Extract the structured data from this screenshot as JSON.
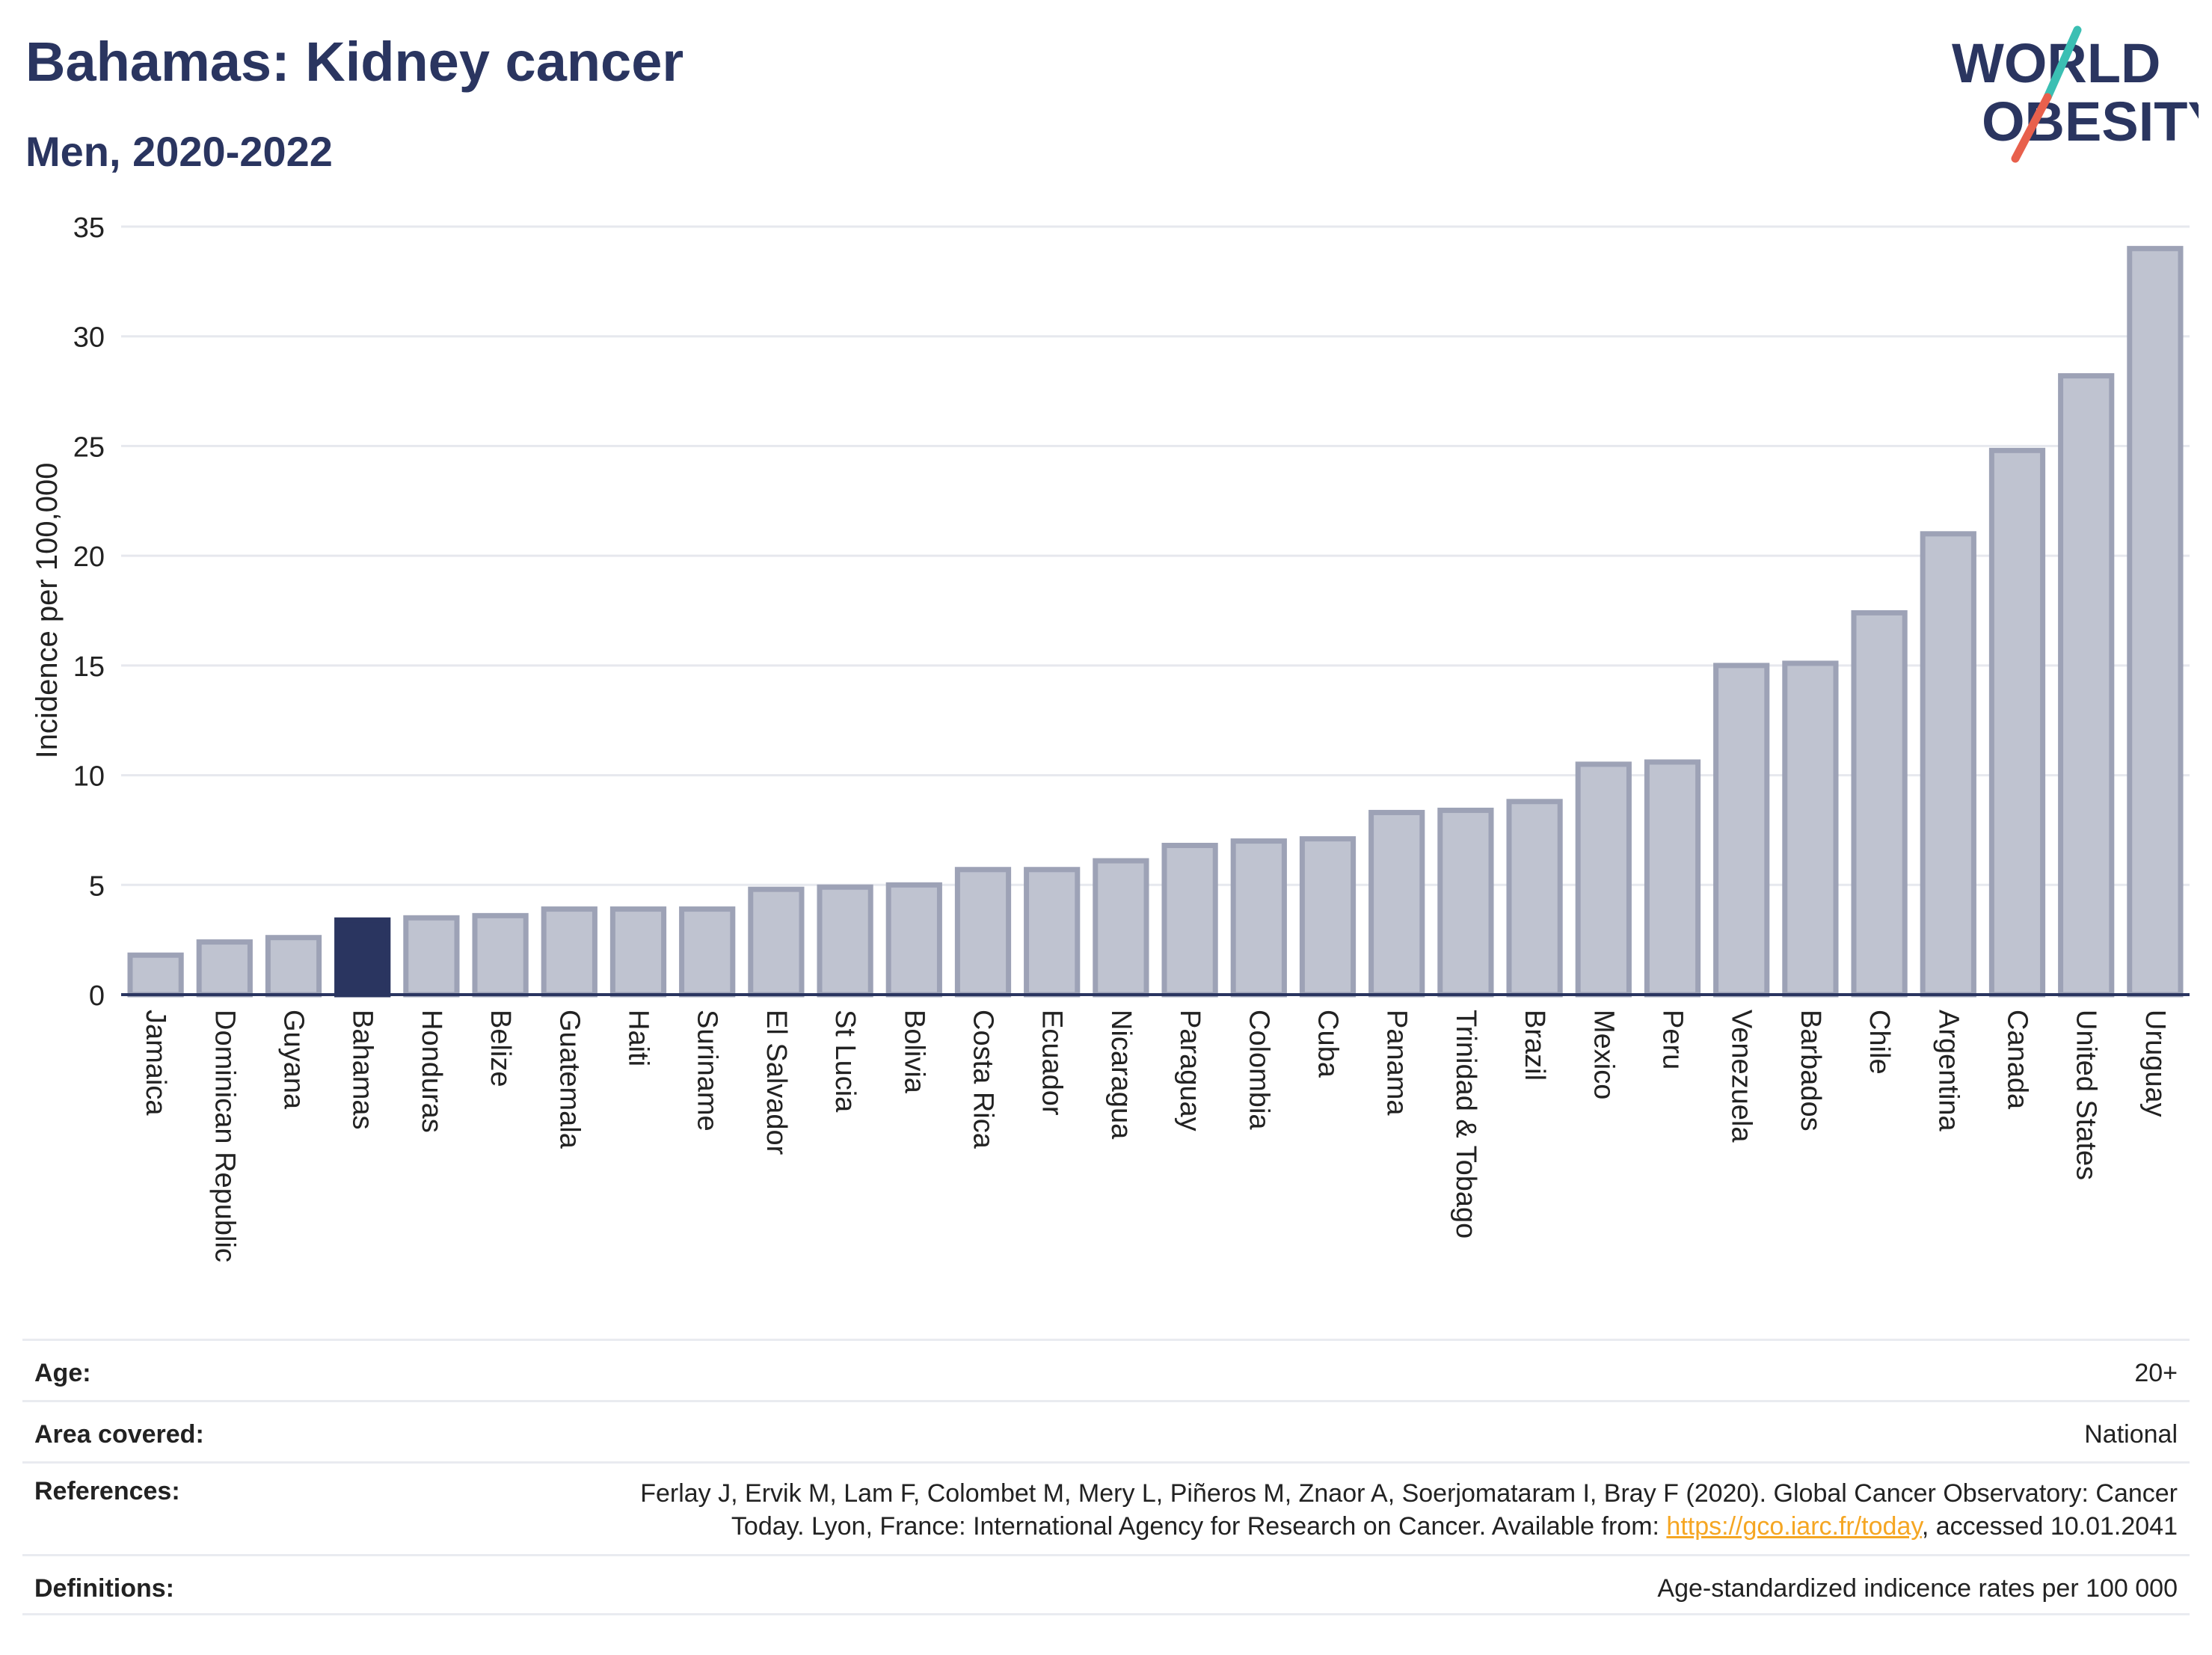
{
  "header": {
    "title": "Bahamas: Kidney cancer",
    "subtitle": "Men, 2020-2022"
  },
  "logo": {
    "line1": "WORLD",
    "line2": "OBESITY",
    "accent_teal": "#3bbfb3",
    "accent_red": "#e8604c"
  },
  "chart_data": {
    "type": "bar",
    "ylabel": "Incidence per 100,000",
    "xlabel": "",
    "ylim": [
      0,
      35
    ],
    "yticks": [
      0,
      5,
      10,
      15,
      20,
      25,
      30,
      35
    ],
    "grid": true,
    "highlight": "Bahamas",
    "colors": {
      "bar": "#bfc3d0",
      "bar_border": "#9da2b6",
      "highlight": "#2a3560",
      "axis": "#2a3560",
      "grid": "#e6e8ee"
    },
    "categories": [
      "Jamaica",
      "Dominican Republic",
      "Guyana",
      "Bahamas",
      "Honduras",
      "Belize",
      "Guatemala",
      "Haiti",
      "Suriname",
      "El Salvador",
      "St Lucia",
      "Bolivia",
      "Costa Rica",
      "Ecuador",
      "Nicaragua",
      "Paraguay",
      "Colombia",
      "Cuba",
      "Panama",
      "Trinidad & Tobago",
      "Brazil",
      "Mexico",
      "Peru",
      "Venezuela",
      "Barbados",
      "Chile",
      "Argentina",
      "Canada",
      "United States",
      "Uruguay"
    ],
    "values": [
      1.8,
      2.4,
      2.6,
      3.4,
      3.5,
      3.6,
      3.9,
      3.9,
      3.9,
      4.8,
      4.9,
      5.0,
      5.7,
      5.7,
      6.1,
      6.8,
      7.0,
      7.1,
      8.3,
      8.4,
      8.8,
      10.5,
      10.6,
      15.0,
      15.1,
      17.4,
      21.0,
      24.8,
      28.2,
      34.0
    ]
  },
  "footer": {
    "rows": [
      {
        "label": "Age:",
        "value": "20+"
      },
      {
        "label": "Area covered:",
        "value": "National"
      },
      {
        "label": "References:",
        "value": "Ferlay J, Ervik M, Lam F, Colombet M, Mery L, Piñeros M, Znaor A, Soerjomataram I, Bray F (2020). Global Cancer Observatory: Cancer Today. Lyon, France: International Agency for Research on Cancer. Available from: ",
        "link": "https://gco.iarc.fr/today",
        "suffix": ", accessed 10.01.2041"
      },
      {
        "label": "Definitions:",
        "value": "Age-standardized indicence rates per 100 000"
      }
    ]
  }
}
